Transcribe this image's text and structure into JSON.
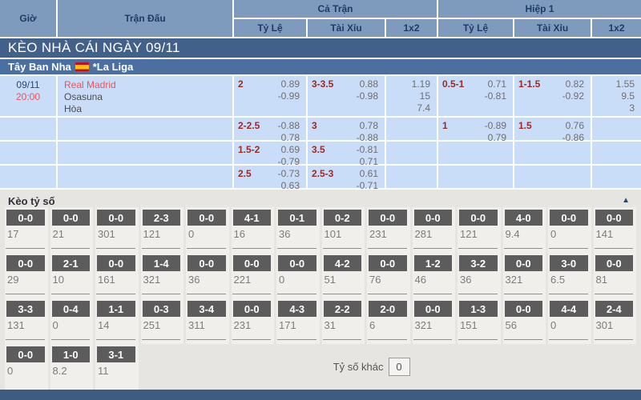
{
  "header": {
    "col_time": "Giờ",
    "col_match": "Trận Đấu",
    "group_full": "Cả Trận",
    "group_half": "Hiệp 1",
    "sub_odds": "Tỷ Lệ",
    "sub_ou": "Tài Xỉu",
    "sub_1x2": "1x2"
  },
  "title_bar": "KÈO NHÀ CÁI NGÀY 09/11",
  "league_bar": {
    "country": "Tây Ban Nha",
    "flag": "spain-flag",
    "league": "*La Liga"
  },
  "match": {
    "date": "09/11",
    "time": "20:00",
    "home": "Real Madrid",
    "away": "Osasuna",
    "draw_label": "Hòa",
    "rows": [
      {
        "ft_hdp": {
          "line": "2",
          "v1": "0.89",
          "v2": "-0.99"
        },
        "ft_ou": {
          "line": "3-3.5",
          "v1": "0.88",
          "v2": "-0.98"
        },
        "ft_1x2": [
          "1.19",
          "15",
          "7.4"
        ],
        "h1_hdp": {
          "line": "0.5-1",
          "v1": "0.71",
          "v2": "-0.81"
        },
        "h1_ou": {
          "line": "1-1.5",
          "v1": "0.82",
          "v2": "-0.92"
        },
        "h1_1x2": [
          "1.55",
          "9.5",
          "3"
        ]
      },
      {
        "ft_hdp": {
          "line": "2-2.5",
          "v1": "-0.88",
          "v2": "0.78"
        },
        "ft_ou": {
          "line": "3",
          "v1": "0.78",
          "v2": "-0.88"
        },
        "h1_hdp": {
          "line": "1",
          "v1": "-0.89",
          "v2": "0.79"
        },
        "h1_ou": {
          "line": "1.5",
          "v1": "0.76",
          "v2": "-0.86"
        }
      },
      {
        "ft_hdp": {
          "line": "1.5-2",
          "v1": "0.69",
          "v2": "-0.79"
        },
        "ft_ou": {
          "line": "3.5",
          "v1": "-0.81",
          "v2": "0.71"
        }
      },
      {
        "ft_hdp": {
          "line": "2.5",
          "v1": "-0.73",
          "v2": "0.63"
        },
        "ft_ou": {
          "line": "2.5-3",
          "v1": "0.61",
          "v2": "-0.71"
        }
      }
    ]
  },
  "score_section": {
    "title": "Kèo tỷ số",
    "collapse_icon": "▲",
    "other_label": "Tỷ số khác",
    "other_value": "0",
    "rows": [
      [
        {
          "score": "0-0",
          "odds": "17"
        },
        {
          "score": "0-0",
          "odds": "21"
        },
        {
          "score": "0-0",
          "odds": "301"
        },
        {
          "score": "2-3",
          "odds": "121"
        },
        {
          "score": "0-0",
          "odds": "0"
        },
        {
          "score": "4-1",
          "odds": "16"
        },
        {
          "score": "0-1",
          "odds": "36"
        },
        {
          "score": "0-2",
          "odds": "101"
        },
        {
          "score": "0-0",
          "odds": "231"
        },
        {
          "score": "0-0",
          "odds": "281"
        },
        {
          "score": "0-0",
          "odds": "121"
        },
        {
          "score": "4-0",
          "odds": "9.4"
        },
        {
          "score": "0-0",
          "odds": "0"
        },
        {
          "score": "0-0",
          "odds": "141"
        }
      ],
      [
        {
          "score": "0-0",
          "odds": "29"
        },
        {
          "score": "2-1",
          "odds": "10"
        },
        {
          "score": "0-0",
          "odds": "161"
        },
        {
          "score": "1-4",
          "odds": "321"
        },
        {
          "score": "0-0",
          "odds": "36"
        },
        {
          "score": "0-0",
          "odds": "221"
        },
        {
          "score": "0-0",
          "odds": "0"
        },
        {
          "score": "4-2",
          "odds": "51"
        },
        {
          "score": "0-0",
          "odds": "76"
        },
        {
          "score": "1-2",
          "odds": "46"
        },
        {
          "score": "3-2",
          "odds": "36"
        },
        {
          "score": "0-0",
          "odds": "321"
        },
        {
          "score": "3-0",
          "odds": "6.5"
        },
        {
          "score": "0-0",
          "odds": "81"
        }
      ],
      [
        {
          "score": "3-3",
          "odds": "131"
        },
        {
          "score": "0-4",
          "odds": "0"
        },
        {
          "score": "1-1",
          "odds": "14"
        },
        {
          "score": "0-3",
          "odds": "251"
        },
        {
          "score": "3-4",
          "odds": "311"
        },
        {
          "score": "0-0",
          "odds": "231"
        },
        {
          "score": "4-3",
          "odds": "171"
        },
        {
          "score": "2-2",
          "odds": "31"
        },
        {
          "score": "2-0",
          "odds": "6"
        },
        {
          "score": "0-0",
          "odds": "321"
        },
        {
          "score": "1-3",
          "odds": "151"
        },
        {
          "score": "0-0",
          "odds": "56"
        },
        {
          "score": "4-4",
          "odds": "0"
        },
        {
          "score": "2-4",
          "odds": "301"
        }
      ],
      [
        {
          "score": "0-0",
          "odds": "0"
        },
        {
          "score": "1-0",
          "odds": "8.2"
        },
        {
          "score": "3-1",
          "odds": "11"
        }
      ]
    ]
  },
  "colors": {
    "header_bg": "#7e9abc",
    "header_text": "#1d3d66",
    "title_bar_bg": "#41608a",
    "league_bar_bg": "#4a6fa0",
    "cell_bg": "#c9dcf8",
    "handicap_text": "#9c2b24",
    "odds_text": "#6f6f6f",
    "accent_red": "#e4575c",
    "date_navy": "#2a4a73",
    "section_bg": "#e6e5e1",
    "strip_bg": "#f0efec",
    "score_btn_bg": "#5c5c5c",
    "footer_bg": "#3e5c80"
  }
}
